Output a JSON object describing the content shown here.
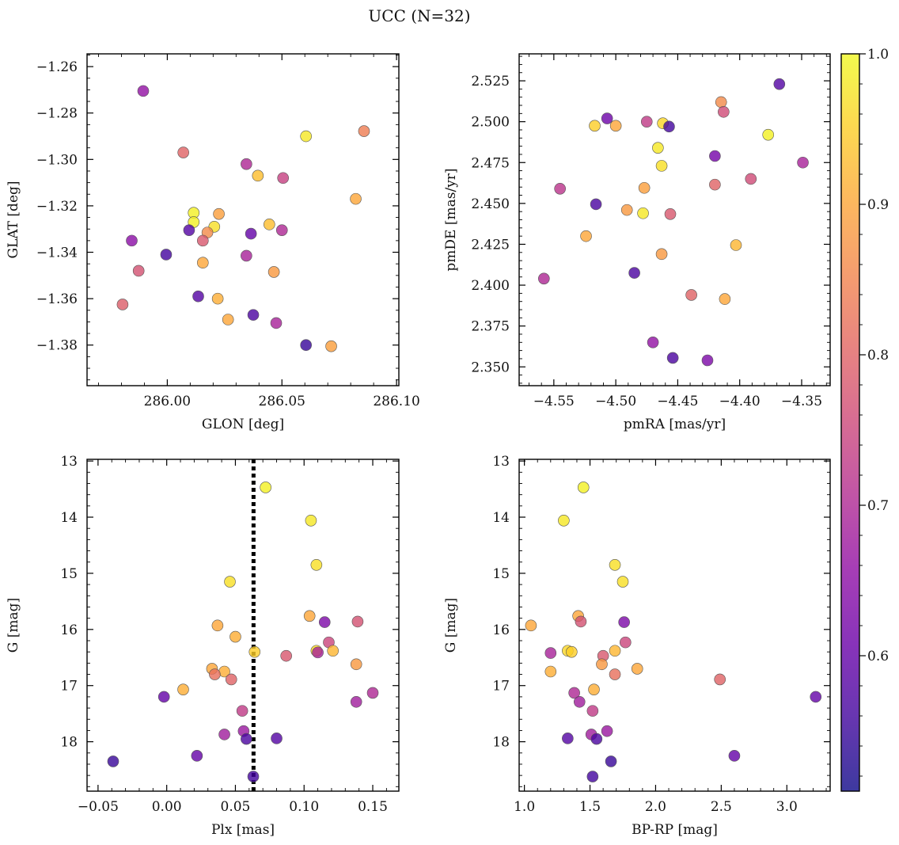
{
  "chart_data": {
    "title": "UCC (N=32)",
    "colormap": "plasma",
    "point_alpha": 0.8,
    "colorbar": {
      "min": 0.51,
      "max": 1.0,
      "ticks": [
        0.6,
        0.7,
        0.8,
        0.9,
        1.0
      ],
      "tick_labels": [
        "0.6",
        "0.7",
        "0.8",
        "0.9",
        "1.0"
      ]
    },
    "panels": [
      {
        "type": "scatter",
        "xlabel": "GLON [deg]",
        "ylabel": "GLAT [deg]",
        "xlim": [
          285.965,
          286.101
        ],
        "ylim": [
          -1.3975,
          -1.2545
        ],
        "xticks": [
          286.0,
          286.05,
          286.1
        ],
        "xtick_labels": [
          "286.00",
          "286.05",
          "286.10"
        ],
        "xminor": 0.01,
        "yticks": [
          -1.38,
          -1.36,
          -1.34,
          -1.32,
          -1.3,
          -1.28,
          -1.26
        ],
        "ytick_labels": [
          "−1.38",
          "−1.36",
          "−1.34",
          "−1.32",
          "−1.30",
          "−1.28",
          "−1.26"
        ],
        "yminor": 0.005,
        "points": [
          {
            "x": 285.9895,
            "y": -1.2705,
            "c": 0.66
          },
          {
            "x": 286.007,
            "y": -1.297,
            "c": 0.8
          },
          {
            "x": 286.0858,
            "y": -1.2878,
            "c": 0.84
          },
          {
            "x": 286.0605,
            "y": -1.29,
            "c": 0.98
          },
          {
            "x": 286.0345,
            "y": -1.302,
            "c": 0.7
          },
          {
            "x": 286.0395,
            "y": -1.307,
            "c": 0.93
          },
          {
            "x": 286.0505,
            "y": -1.308,
            "c": 0.74
          },
          {
            "x": 286.0822,
            "y": -1.317,
            "c": 0.9
          },
          {
            "x": 286.0115,
            "y": -1.323,
            "c": 0.99
          },
          {
            "x": 286.0115,
            "y": -1.327,
            "c": 0.99
          },
          {
            "x": 286.0225,
            "y": -1.3235,
            "c": 0.89
          },
          {
            "x": 286.0205,
            "y": -1.329,
            "c": 0.97
          },
          {
            "x": 286.0445,
            "y": -1.328,
            "c": 0.93
          },
          {
            "x": 286.0175,
            "y": -1.3315,
            "c": 0.86
          },
          {
            "x": 286.0095,
            "y": -1.3305,
            "c": 0.58
          },
          {
            "x": 286.0365,
            "y": -1.332,
            "c": 0.6
          },
          {
            "x": 286.05,
            "y": -1.3305,
            "c": 0.7
          },
          {
            "x": 286.0155,
            "y": -1.335,
            "c": 0.78
          },
          {
            "x": 285.9845,
            "y": -1.335,
            "c": 0.65
          },
          {
            "x": 285.9995,
            "y": -1.341,
            "c": 0.56
          },
          {
            "x": 286.0345,
            "y": -1.3415,
            "c": 0.69
          },
          {
            "x": 286.0155,
            "y": -1.3445,
            "c": 0.9
          },
          {
            "x": 286.0465,
            "y": -1.3485,
            "c": 0.88
          },
          {
            "x": 285.9875,
            "y": -1.348,
            "c": 0.77
          },
          {
            "x": 286.0135,
            "y": -1.359,
            "c": 0.58
          },
          {
            "x": 286.022,
            "y": -1.36,
            "c": 0.91
          },
          {
            "x": 285.9805,
            "y": -1.3625,
            "c": 0.79
          },
          {
            "x": 286.0265,
            "y": -1.369,
            "c": 0.9
          },
          {
            "x": 286.0375,
            "y": -1.367,
            "c": 0.57
          },
          {
            "x": 286.0475,
            "y": -1.3705,
            "c": 0.69
          },
          {
            "x": 286.0605,
            "y": -1.38,
            "c": 0.55
          },
          {
            "x": 286.0715,
            "y": -1.3805,
            "c": 0.89
          }
        ]
      },
      {
        "type": "scatter",
        "xlabel": "pmRA [mas/yr]",
        "ylabel": "pmDE [mas/yr]",
        "xlim": [
          -4.578,
          -4.327
        ],
        "ylim": [
          2.3385,
          2.5415
        ],
        "xticks": [
          -4.55,
          -4.5,
          -4.45,
          -4.4,
          -4.35
        ],
        "xtick_labels": [
          "−4.55",
          "−4.50",
          "−4.45",
          "−4.40",
          "−4.35"
        ],
        "xminor": 0.01,
        "yticks": [
          2.35,
          2.375,
          2.4,
          2.425,
          2.45,
          2.475,
          2.5,
          2.525
        ],
        "ytick_labels": [
          "2.350",
          "2.375",
          "2.400",
          "2.425",
          "2.450",
          "2.475",
          "2.500",
          "2.525"
        ],
        "yminor": 0.005,
        "points": [
          {
            "x": -4.368,
            "y": 2.523,
            "c": 0.58
          },
          {
            "x": -4.415,
            "y": 2.512,
            "c": 0.86
          },
          {
            "x": -4.413,
            "y": 2.506,
            "c": 0.76
          },
          {
            "x": -4.507,
            "y": 2.502,
            "c": 0.61
          },
          {
            "x": -4.475,
            "y": 2.5,
            "c": 0.73
          },
          {
            "x": -4.462,
            "y": 2.499,
            "c": 0.96
          },
          {
            "x": -4.517,
            "y": 2.4975,
            "c": 0.95
          },
          {
            "x": -4.5,
            "y": 2.4975,
            "c": 0.9
          },
          {
            "x": -4.457,
            "y": 2.497,
            "c": 0.56
          },
          {
            "x": -4.377,
            "y": 2.492,
            "c": 0.99
          },
          {
            "x": -4.466,
            "y": 2.484,
            "c": 0.98
          },
          {
            "x": -4.42,
            "y": 2.479,
            "c": 0.62
          },
          {
            "x": -4.349,
            "y": 2.475,
            "c": 0.69
          },
          {
            "x": -4.463,
            "y": 2.473,
            "c": 0.97
          },
          {
            "x": -4.391,
            "y": 2.465,
            "c": 0.76
          },
          {
            "x": -4.42,
            "y": 2.4615,
            "c": 0.8
          },
          {
            "x": -4.477,
            "y": 2.4595,
            "c": 0.89
          },
          {
            "x": -4.545,
            "y": 2.459,
            "c": 0.72
          },
          {
            "x": -4.516,
            "y": 2.4495,
            "c": 0.57
          },
          {
            "x": -4.491,
            "y": 2.446,
            "c": 0.88
          },
          {
            "x": -4.478,
            "y": 2.444,
            "c": 0.98
          },
          {
            "x": -4.456,
            "y": 2.4435,
            "c": 0.78
          },
          {
            "x": -4.524,
            "y": 2.43,
            "c": 0.9
          },
          {
            "x": -4.403,
            "y": 2.4245,
            "c": 0.92
          },
          {
            "x": -4.463,
            "y": 2.419,
            "c": 0.88
          },
          {
            "x": -4.485,
            "y": 2.4075,
            "c": 0.57
          },
          {
            "x": -4.558,
            "y": 2.404,
            "c": 0.7
          },
          {
            "x": -4.439,
            "y": 2.394,
            "c": 0.8
          },
          {
            "x": -4.412,
            "y": 2.3915,
            "c": 0.9
          },
          {
            "x": -4.47,
            "y": 2.365,
            "c": 0.66
          },
          {
            "x": -4.454,
            "y": 2.3555,
            "c": 0.57
          },
          {
            "x": -4.426,
            "y": 2.354,
            "c": 0.63
          }
        ]
      },
      {
        "type": "scatter",
        "xlabel": "Plx [mas]",
        "ylabel": "G [mag]",
        "xlim": [
          -0.058,
          0.169
        ],
        "ylim": [
          18.88,
          12.97
        ],
        "y_inverted": true,
        "xticks": [
          -0.05,
          0.0,
          0.05,
          0.1,
          0.15
        ],
        "xtick_labels": [
          "−0.05",
          "0.00",
          "0.05",
          "0.10",
          "0.15"
        ],
        "xminor": 0.01,
        "yticks": [
          13,
          14,
          15,
          16,
          17,
          18
        ],
        "ytick_labels": [
          "13",
          "14",
          "15",
          "16",
          "17",
          "18"
        ],
        "yminor": 0.2,
        "vline": {
          "x": 0.0632,
          "style": "dotted",
          "color": "#000000"
        },
        "points": [
          {
            "x": 0.072,
            "y": 13.47,
            "c": 0.99
          },
          {
            "x": 0.105,
            "y": 14.06,
            "c": 0.98
          },
          {
            "x": 0.109,
            "y": 14.85,
            "c": 0.97
          },
          {
            "x": 0.046,
            "y": 15.15,
            "c": 0.97
          },
          {
            "x": 0.104,
            "y": 15.76,
            "c": 0.9
          },
          {
            "x": 0.115,
            "y": 15.87,
            "c": 0.63
          },
          {
            "x": 0.139,
            "y": 15.86,
            "c": 0.77
          },
          {
            "x": 0.037,
            "y": 15.93,
            "c": 0.9
          },
          {
            "x": 0.05,
            "y": 16.13,
            "c": 0.91
          },
          {
            "x": 0.118,
            "y": 16.23,
            "c": 0.75
          },
          {
            "x": 0.064,
            "y": 16.4,
            "c": 0.95
          },
          {
            "x": 0.109,
            "y": 16.38,
            "c": 0.96
          },
          {
            "x": 0.121,
            "y": 16.38,
            "c": 0.92
          },
          {
            "x": 0.11,
            "y": 16.41,
            "c": 0.69
          },
          {
            "x": 0.087,
            "y": 16.47,
            "c": 0.78
          },
          {
            "x": 0.138,
            "y": 16.62,
            "c": 0.88
          },
          {
            "x": 0.033,
            "y": 16.7,
            "c": 0.9
          },
          {
            "x": 0.042,
            "y": 16.75,
            "c": 0.91
          },
          {
            "x": 0.035,
            "y": 16.8,
            "c": 0.82
          },
          {
            "x": 0.047,
            "y": 16.89,
            "c": 0.8
          },
          {
            "x": 0.012,
            "y": 17.07,
            "c": 0.91
          },
          {
            "x": 0.15,
            "y": 17.13,
            "c": 0.7
          },
          {
            "x": -0.002,
            "y": 17.2,
            "c": 0.6
          },
          {
            "x": 0.138,
            "y": 17.29,
            "c": 0.68
          },
          {
            "x": 0.055,
            "y": 17.45,
            "c": 0.73
          },
          {
            "x": 0.056,
            "y": 17.81,
            "c": 0.67
          },
          {
            "x": 0.042,
            "y": 17.87,
            "c": 0.68
          },
          {
            "x": 0.08,
            "y": 17.94,
            "c": 0.58
          },
          {
            "x": 0.058,
            "y": 17.95,
            "c": 0.57
          },
          {
            "x": 0.022,
            "y": 18.25,
            "c": 0.6
          },
          {
            "x": -0.039,
            "y": 18.35,
            "c": 0.55
          },
          {
            "x": 0.063,
            "y": 18.62,
            "c": 0.56
          }
        ]
      },
      {
        "type": "scatter",
        "xlabel": "BP-RP [mag]",
        "ylabel": "G [mag]",
        "xlim": [
          0.96,
          3.33
        ],
        "ylim": [
          18.88,
          12.97
        ],
        "y_inverted": true,
        "xticks": [
          1.0,
          1.5,
          2.0,
          2.5,
          3.0
        ],
        "xtick_labels": [
          "1.0",
          "1.5",
          "2.0",
          "2.5",
          "3.0"
        ],
        "xminor": 0.1,
        "yticks": [
          13,
          14,
          15,
          16,
          17,
          18
        ],
        "ytick_labels": [
          "13",
          "14",
          "15",
          "16",
          "17",
          "18"
        ],
        "yminor": 0.2,
        "points": [
          {
            "x": 1.45,
            "y": 13.47,
            "c": 0.99
          },
          {
            "x": 1.3,
            "y": 14.06,
            "c": 0.98
          },
          {
            "x": 1.69,
            "y": 14.85,
            "c": 0.97
          },
          {
            "x": 1.75,
            "y": 15.15,
            "c": 0.97
          },
          {
            "x": 1.41,
            "y": 15.76,
            "c": 0.9
          },
          {
            "x": 1.43,
            "y": 15.86,
            "c": 0.77
          },
          {
            "x": 1.76,
            "y": 15.87,
            "c": 0.63
          },
          {
            "x": 1.05,
            "y": 15.93,
            "c": 0.9
          },
          {
            "x": 1.77,
            "y": 16.23,
            "c": 0.75
          },
          {
            "x": 1.33,
            "y": 16.38,
            "c": 0.96
          },
          {
            "x": 1.36,
            "y": 16.4,
            "c": 0.95
          },
          {
            "x": 1.69,
            "y": 16.38,
            "c": 0.92
          },
          {
            "x": 1.2,
            "y": 16.42,
            "c": 0.69
          },
          {
            "x": 1.6,
            "y": 16.47,
            "c": 0.78
          },
          {
            "x": 1.59,
            "y": 16.62,
            "c": 0.88
          },
          {
            "x": 1.86,
            "y": 16.7,
            "c": 0.9
          },
          {
            "x": 1.2,
            "y": 16.75,
            "c": 0.91
          },
          {
            "x": 1.69,
            "y": 16.8,
            "c": 0.82
          },
          {
            "x": 2.49,
            "y": 16.89,
            "c": 0.8
          },
          {
            "x": 1.53,
            "y": 17.07,
            "c": 0.91
          },
          {
            "x": 1.38,
            "y": 17.13,
            "c": 0.7
          },
          {
            "x": 3.22,
            "y": 17.2,
            "c": 0.6
          },
          {
            "x": 1.42,
            "y": 17.29,
            "c": 0.68
          },
          {
            "x": 1.52,
            "y": 17.45,
            "c": 0.73
          },
          {
            "x": 1.63,
            "y": 17.81,
            "c": 0.67
          },
          {
            "x": 1.51,
            "y": 17.87,
            "c": 0.68
          },
          {
            "x": 1.33,
            "y": 17.94,
            "c": 0.58
          },
          {
            "x": 1.55,
            "y": 17.95,
            "c": 0.57
          },
          {
            "x": 2.6,
            "y": 18.25,
            "c": 0.6
          },
          {
            "x": 1.66,
            "y": 18.35,
            "c": 0.55
          },
          {
            "x": 1.52,
            "y": 18.62,
            "c": 0.56
          }
        ]
      }
    ]
  }
}
